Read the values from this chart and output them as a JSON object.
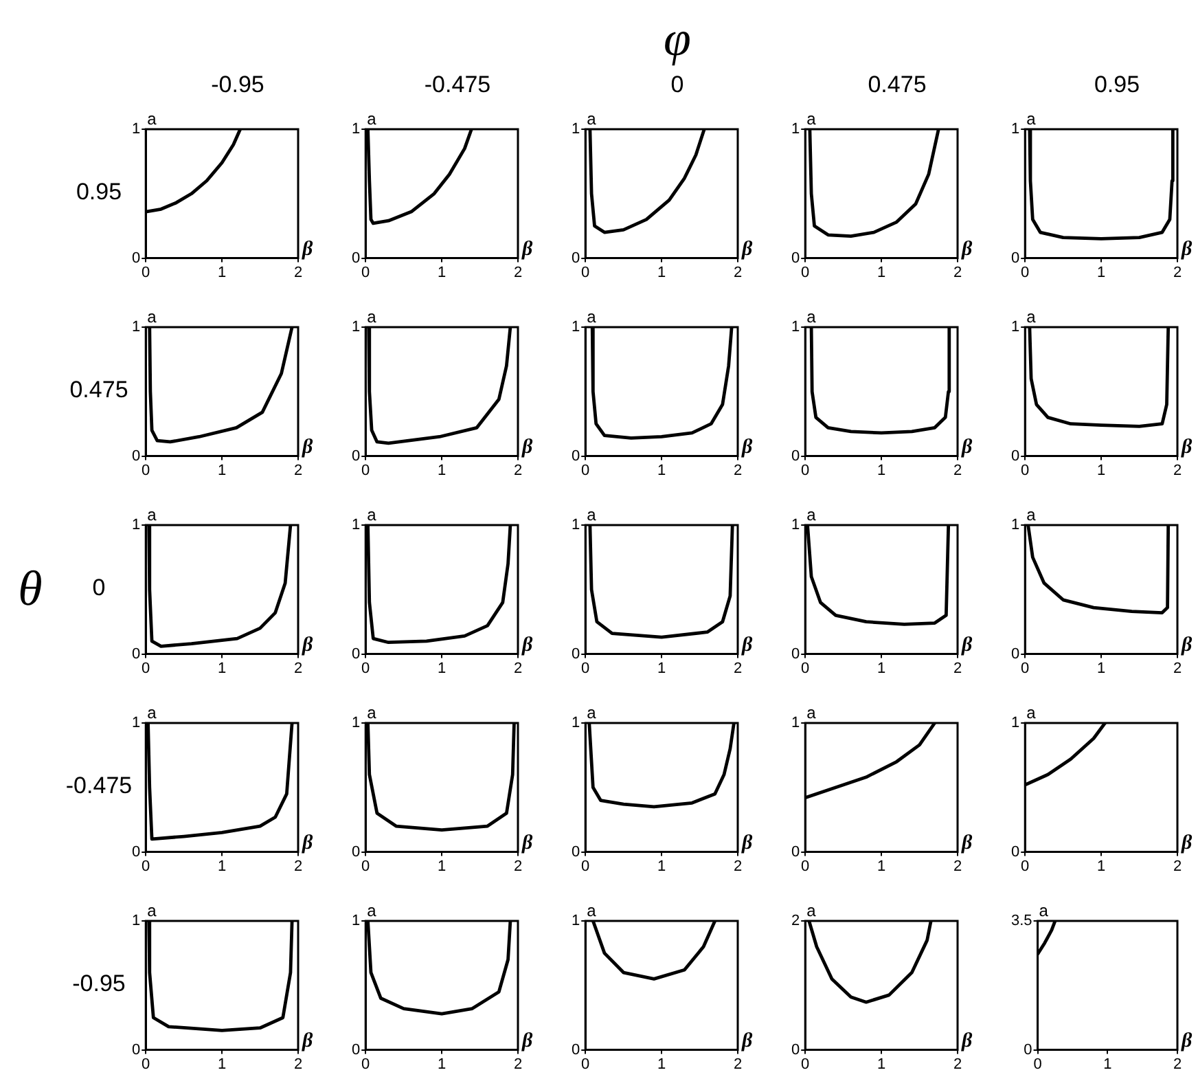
{
  "chart_data": [
    {
      "type": "line",
      "title": "-0.95",
      "subtitle": "0.95",
      "xlabel": "β",
      "ylabel": "a",
      "x": [
        0,
        0.2,
        0.4,
        0.6,
        0.8,
        1.0,
        1.15,
        1.24
      ],
      "values": [
        0.36,
        0.38,
        0.43,
        0.5,
        0.6,
        0.74,
        0.88,
        1
      ],
      "color": "#000000",
      "xlim": [
        0,
        2
      ],
      "ylim": [
        0,
        1
      ],
      "xticks": [
        0,
        1,
        2
      ],
      "yticks": [
        0,
        1
      ],
      "marker": "none"
    },
    {
      "type": "line",
      "title": "-0.475",
      "xlabel": "β",
      "ylabel": "a",
      "x": [
        0.03,
        0.05,
        0.07,
        0.1,
        0.3,
        0.6,
        0.9,
        1.1,
        1.3,
        1.39
      ],
      "values": [
        1,
        0.6,
        0.3,
        0.27,
        0.29,
        0.36,
        0.5,
        0.65,
        0.85,
        1
      ],
      "color": "#000000",
      "xlim": [
        0,
        2
      ],
      "ylim": [
        0,
        1
      ],
      "xticks": [
        0,
        1,
        2
      ],
      "yticks": [
        0,
        1
      ],
      "marker": "none"
    },
    {
      "type": "line",
      "title": "0",
      "xlabel": "β",
      "ylabel": "a",
      "x": [
        0.06,
        0.08,
        0.12,
        0.25,
        0.5,
        0.8,
        1.1,
        1.3,
        1.45,
        1.56
      ],
      "values": [
        1,
        0.5,
        0.25,
        0.2,
        0.22,
        0.3,
        0.45,
        0.62,
        0.8,
        1
      ],
      "color": "#000000",
      "xlim": [
        0,
        2
      ],
      "ylim": [
        0,
        1
      ],
      "xticks": [
        0,
        1,
        2
      ],
      "yticks": [
        0,
        1
      ],
      "marker": "none"
    },
    {
      "type": "line",
      "title": "0.475",
      "xlabel": "β",
      "ylabel": "a",
      "x": [
        0.06,
        0.08,
        0.12,
        0.3,
        0.6,
        0.9,
        1.2,
        1.45,
        1.62,
        1.75
      ],
      "values": [
        1,
        0.5,
        0.25,
        0.18,
        0.17,
        0.2,
        0.28,
        0.42,
        0.65,
        1
      ],
      "color": "#000000",
      "xlim": [
        0,
        2
      ],
      "ylim": [
        0,
        1
      ],
      "xticks": [
        0,
        1,
        2
      ],
      "yticks": [
        0,
        1
      ],
      "marker": "none"
    },
    {
      "type": "line",
      "title": "0.95",
      "xlabel": "β",
      "ylabel": "a",
      "x": [
        0.06,
        0.07,
        0.1,
        0.2,
        0.5,
        1,
        1.5,
        1.8,
        1.9,
        1.93,
        1.94
      ],
      "values": [
        1,
        0.6,
        0.3,
        0.2,
        0.16,
        0.15,
        0.16,
        0.2,
        0.3,
        0.6,
        1
      ],
      "color": "#000000",
      "xlim": [
        0,
        2
      ],
      "ylim": [
        0,
        1
      ],
      "xticks": [
        0,
        1,
        2
      ],
      "yticks": [
        0,
        1
      ],
      "marker": "none"
    },
    {
      "type": "line",
      "subtitle": "0.475",
      "xlabel": "β",
      "ylabel": "a",
      "x": [
        0.05,
        0.06,
        0.08,
        0.15,
        0.32,
        0.7,
        1.19,
        1.53,
        1.78,
        1.92
      ],
      "values": [
        1,
        0.5,
        0.2,
        0.12,
        0.11,
        0.15,
        0.22,
        0.34,
        0.64,
        1
      ],
      "color": "#000000",
      "xlim": [
        0,
        2
      ],
      "ylim": [
        0,
        1
      ],
      "xticks": [
        0,
        1,
        2
      ],
      "yticks": [
        0,
        1
      ],
      "marker": "none"
    },
    {
      "type": "line",
      "xlabel": "β",
      "ylabel": "a",
      "x": [
        0.04,
        0.05,
        0.08,
        0.15,
        0.3,
        0.97,
        1.46,
        1.75,
        1.85,
        1.9
      ],
      "values": [
        1,
        0.5,
        0.2,
        0.11,
        0.1,
        0.15,
        0.22,
        0.44,
        0.7,
        1
      ],
      "color": "#000000",
      "xlim": [
        0,
        2
      ],
      "ylim": [
        0,
        1
      ],
      "xticks": [
        0,
        1,
        2
      ],
      "yticks": [
        0,
        1
      ],
      "marker": "none"
    },
    {
      "type": "line",
      "xlabel": "β",
      "ylabel": "a",
      "x": [
        0.09,
        0.1,
        0.14,
        0.25,
        0.6,
        1.0,
        1.4,
        1.65,
        1.8,
        1.88,
        1.92
      ],
      "values": [
        1,
        0.5,
        0.25,
        0.16,
        0.14,
        0.15,
        0.18,
        0.25,
        0.4,
        0.7,
        1
      ],
      "color": "#000000",
      "xlim": [
        0,
        2
      ],
      "ylim": [
        0,
        1
      ],
      "xticks": [
        0,
        1,
        2
      ],
      "yticks": [
        0,
        1
      ],
      "marker": "none"
    },
    {
      "type": "line",
      "xlabel": "β",
      "ylabel": "a",
      "x": [
        0.08,
        0.09,
        0.14,
        0.3,
        0.6,
        1,
        1.4,
        1.7,
        1.84,
        1.88,
        1.89
      ],
      "values": [
        1,
        0.5,
        0.3,
        0.22,
        0.19,
        0.18,
        0.19,
        0.22,
        0.3,
        0.5,
        1
      ],
      "color": "#000000",
      "xlim": [
        0,
        2
      ],
      "ylim": [
        0,
        1
      ],
      "xticks": [
        0,
        1,
        2
      ],
      "yticks": [
        0,
        1
      ],
      "marker": "none"
    },
    {
      "type": "line",
      "xlabel": "β",
      "ylabel": "a",
      "x": [
        0.06,
        0.08,
        0.15,
        0.3,
        0.6,
        1,
        1.5,
        1.8,
        1.86,
        1.88
      ],
      "values": [
        1,
        0.6,
        0.4,
        0.3,
        0.25,
        0.24,
        0.23,
        0.25,
        0.4,
        1
      ],
      "color": "#000000",
      "xlim": [
        0,
        2
      ],
      "ylim": [
        0,
        1
      ],
      "xticks": [
        0,
        1,
        2
      ],
      "yticks": [
        0,
        1
      ],
      "marker": "none"
    },
    {
      "type": "line",
      "subtitle": "0",
      "xlabel": "β",
      "ylabel": "a",
      "x": [
        0.04,
        0.05,
        0.08,
        0.2,
        0.6,
        1.2,
        1.5,
        1.7,
        1.83,
        1.9
      ],
      "values": [
        1,
        0.5,
        0.1,
        0.06,
        0.08,
        0.12,
        0.2,
        0.32,
        0.55,
        1
      ],
      "color": "#000000",
      "xlim": [
        0,
        2
      ],
      "ylim": [
        0,
        1
      ],
      "xticks": [
        0,
        1,
        2
      ],
      "yticks": [
        0,
        1
      ],
      "marker": "none"
    },
    {
      "type": "line",
      "xlabel": "β",
      "ylabel": "a",
      "x": [
        0.03,
        0.05,
        0.1,
        0.3,
        0.8,
        1.3,
        1.6,
        1.8,
        1.87,
        1.9
      ],
      "values": [
        1,
        0.4,
        0.12,
        0.09,
        0.1,
        0.14,
        0.22,
        0.4,
        0.7,
        1
      ],
      "color": "#000000",
      "xlim": [
        0,
        2
      ],
      "ylim": [
        0,
        1
      ],
      "xticks": [
        0,
        1,
        2
      ],
      "yticks": [
        0,
        1
      ],
      "marker": "none"
    },
    {
      "type": "line",
      "xlabel": "β",
      "ylabel": "a",
      "x": [
        0.06,
        0.08,
        0.15,
        0.35,
        1,
        1.6,
        1.8,
        1.9,
        1.93
      ],
      "values": [
        1,
        0.5,
        0.25,
        0.16,
        0.13,
        0.17,
        0.25,
        0.45,
        1
      ],
      "color": "#000000",
      "xlim": [
        0,
        2
      ],
      "ylim": [
        0,
        1
      ],
      "xticks": [
        0,
        1,
        2
      ],
      "yticks": [
        0,
        1
      ],
      "marker": "none"
    },
    {
      "type": "line",
      "xlabel": "β",
      "ylabel": "a",
      "x": [
        0.03,
        0.08,
        0.2,
        0.4,
        0.8,
        1.3,
        1.7,
        1.85,
        1.88
      ],
      "values": [
        1,
        0.6,
        0.4,
        0.3,
        0.25,
        0.23,
        0.24,
        0.3,
        1
      ],
      "color": "#000000",
      "xlim": [
        0,
        2
      ],
      "ylim": [
        0,
        1
      ],
      "xticks": [
        0,
        1,
        2
      ],
      "yticks": [
        0,
        1
      ],
      "marker": "none"
    },
    {
      "type": "line",
      "xlabel": "β",
      "ylabel": "a",
      "x": [
        0.04,
        0.1,
        0.25,
        0.5,
        0.9,
        1.4,
        1.8,
        1.87,
        1.88
      ],
      "values": [
        1,
        0.75,
        0.55,
        0.42,
        0.36,
        0.33,
        0.32,
        0.36,
        1
      ],
      "color": "#000000",
      "xlim": [
        0,
        2
      ],
      "ylim": [
        0,
        1
      ],
      "xticks": [
        0,
        1,
        2
      ],
      "yticks": [
        0,
        1
      ],
      "marker": "none"
    },
    {
      "type": "line",
      "subtitle": "-0.475",
      "xlabel": "β",
      "ylabel": "a",
      "x": [
        0.03,
        0.05,
        0.08,
        0.5,
        1,
        1.5,
        1.7,
        1.85,
        1.92
      ],
      "values": [
        1,
        0.5,
        0.1,
        0.12,
        0.15,
        0.2,
        0.27,
        0.45,
        1
      ],
      "color": "#000000",
      "xlim": [
        0,
        2
      ],
      "ylim": [
        0,
        1
      ],
      "xticks": [
        0,
        1,
        2
      ],
      "yticks": [
        0,
        1
      ],
      "marker": "none"
    },
    {
      "type": "line",
      "xlabel": "β",
      "ylabel": "a",
      "x": [
        0.03,
        0.05,
        0.15,
        0.4,
        1,
        1.6,
        1.85,
        1.93,
        1.95
      ],
      "values": [
        1,
        0.6,
        0.3,
        0.2,
        0.17,
        0.2,
        0.3,
        0.6,
        1
      ],
      "color": "#000000",
      "xlim": [
        0,
        2
      ],
      "ylim": [
        0,
        1
      ],
      "xticks": [
        0,
        1,
        2
      ],
      "yticks": [
        0,
        1
      ],
      "marker": "none"
    },
    {
      "type": "line",
      "xlabel": "β",
      "ylabel": "a",
      "x": [
        0.05,
        0.1,
        0.2,
        0.5,
        0.9,
        1.4,
        1.7,
        1.82,
        1.9,
        1.95
      ],
      "values": [
        1,
        0.5,
        0.4,
        0.37,
        0.35,
        0.38,
        0.45,
        0.6,
        0.8,
        1
      ],
      "color": "#000000",
      "xlim": [
        0,
        2
      ],
      "ylim": [
        0,
        1
      ],
      "xticks": [
        0,
        1,
        2
      ],
      "yticks": [
        0,
        1
      ],
      "marker": "none"
    },
    {
      "type": "line",
      "xlabel": "β",
      "ylabel": "a",
      "x": [
        0,
        0.4,
        0.8,
        1.2,
        1.5,
        1.7
      ],
      "values": [
        0.42,
        0.5,
        0.58,
        0.7,
        0.83,
        1
      ],
      "color": "#000000",
      "xlim": [
        0,
        2
      ],
      "ylim": [
        0,
        1
      ],
      "xticks": [
        0,
        1,
        2
      ],
      "yticks": [
        0,
        1
      ],
      "marker": "none"
    },
    {
      "type": "line",
      "xlabel": "β",
      "ylabel": "a",
      "x": [
        0,
        0.3,
        0.6,
        0.9,
        1.05
      ],
      "values": [
        0.52,
        0.6,
        0.72,
        0.88,
        1
      ],
      "color": "#000000",
      "xlim": [
        0,
        2
      ],
      "ylim": [
        0,
        1
      ],
      "xticks": [
        0,
        1,
        2
      ],
      "yticks": [
        0,
        1
      ],
      "marker": "none"
    },
    {
      "type": "line",
      "subtitle": "-0.95",
      "xlabel": "β",
      "ylabel": "a",
      "x": [
        0.04,
        0.05,
        0.1,
        0.3,
        1,
        1.5,
        1.8,
        1.9,
        1.92
      ],
      "values": [
        1,
        0.6,
        0.25,
        0.18,
        0.15,
        0.17,
        0.25,
        0.6,
        1
      ],
      "color": "#000000",
      "xlim": [
        0,
        2
      ],
      "ylim": [
        0,
        1
      ],
      "xticks": [
        0,
        1,
        2
      ],
      "yticks": [
        0,
        1
      ],
      "marker": "none"
    },
    {
      "type": "line",
      "xlabel": "β",
      "ylabel": "a",
      "x": [
        0.03,
        0.07,
        0.2,
        0.5,
        1,
        1.4,
        1.75,
        1.87,
        1.9
      ],
      "values": [
        1,
        0.6,
        0.4,
        0.32,
        0.28,
        0.32,
        0.45,
        0.7,
        1
      ],
      "color": "#000000",
      "xlim": [
        0,
        2
      ],
      "ylim": [
        0,
        1
      ],
      "xticks": [
        0,
        1,
        2
      ],
      "yticks": [
        0,
        1
      ],
      "marker": "none"
    },
    {
      "type": "line",
      "xlabel": "β",
      "ylabel": "a",
      "x": [
        0.1,
        0.25,
        0.5,
        0.9,
        1.3,
        1.55,
        1.7
      ],
      "values": [
        1,
        0.75,
        0.6,
        0.55,
        0.62,
        0.8,
        1
      ],
      "color": "#000000",
      "xlim": [
        0,
        2
      ],
      "ylim": [
        0,
        1
      ],
      "xticks": [
        0,
        1,
        2
      ],
      "yticks": [
        0,
        1
      ],
      "marker": "none"
    },
    {
      "type": "line",
      "xlabel": "β",
      "ylabel": "a",
      "x": [
        0.05,
        0.15,
        0.35,
        0.6,
        0.8,
        1.1,
        1.4,
        1.6,
        1.65
      ],
      "values": [
        2,
        1.6,
        1.1,
        0.82,
        0.74,
        0.85,
        1.2,
        1.7,
        2
      ],
      "color": "#000000",
      "xlim": [
        0,
        2
      ],
      "ylim": [
        0,
        2
      ],
      "xticks": [
        0,
        1,
        2
      ],
      "yticks": [
        0,
        2
      ],
      "marker": "none"
    },
    {
      "type": "line",
      "xlabel": "β",
      "ylabel": "a",
      "x": [
        0,
        0.1,
        0.2,
        0.25
      ],
      "values": [
        2.6,
        2.9,
        3.25,
        3.5
      ],
      "color": "#000000",
      "xlim": [
        0,
        2
      ],
      "ylim": [
        0,
        3.5
      ],
      "xticks": [
        0,
        1,
        2
      ],
      "yticks": [
        0,
        3.5
      ],
      "marker": "none"
    },
    {
      "type": "other",
      "annotations": [
        "φ",
        "θ"
      ]
    }
  ]
}
